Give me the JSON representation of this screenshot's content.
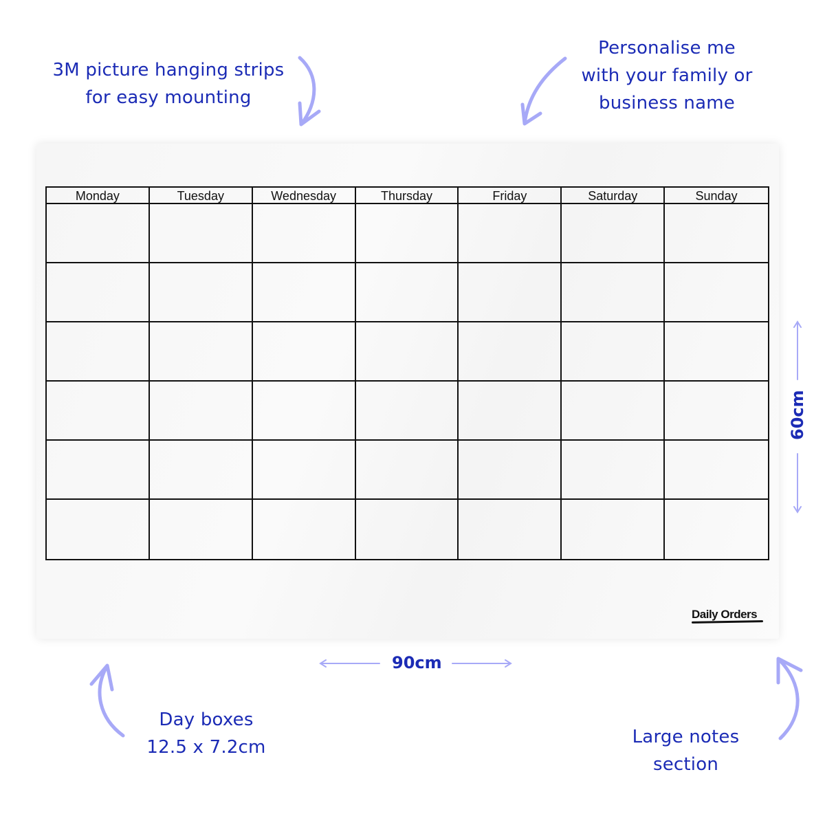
{
  "callouts": {
    "mounting": [
      "3M picture hanging strips",
      "for easy mounting"
    ],
    "personalise": [
      "Personalise me",
      "with your family  or",
      "business name"
    ],
    "day_boxes": [
      "Day boxes",
      "12.5 x 7.2cm"
    ],
    "notes": [
      "Large notes",
      "section"
    ]
  },
  "dimensions": {
    "width": "90cm",
    "height": "60cm"
  },
  "calendar": {
    "days": [
      "Monday",
      "Tuesday",
      "Wednesday",
      "Thursday",
      "Friday",
      "Saturday",
      "Sunday"
    ],
    "weeks": 6
  },
  "brand": {
    "logo": "Daily Orders"
  },
  "colors": {
    "text_accent": "#1b2bb5",
    "arrow": "#a7a9f7",
    "grid": "#111111"
  }
}
